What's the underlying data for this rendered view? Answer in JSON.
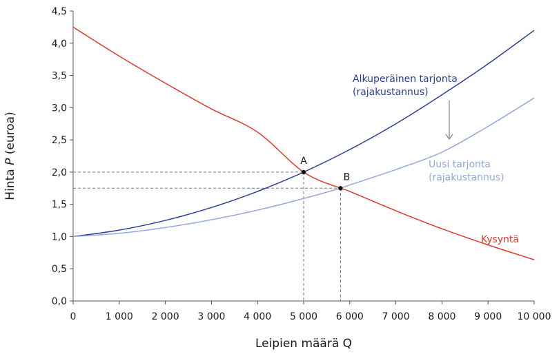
{
  "chart_data": {
    "type": "line",
    "xlabel": "Leipien määrä Q",
    "ylabel_prefix": "Hinta ",
    "ylabel_italic": "P",
    "ylabel_suffix": " (euroa)",
    "xlim": [
      0,
      10000
    ],
    "ylim": [
      0,
      4.5
    ],
    "x_ticks": [
      0,
      1000,
      2000,
      3000,
      4000,
      5000,
      6000,
      7000,
      8000,
      9000,
      10000
    ],
    "x_tick_labels": [
      "0",
      "1 000",
      "2 000",
      "3 000",
      "4 000",
      "5 000",
      "6 000",
      "7 000",
      "8 000",
      "9 000",
      "10 000"
    ],
    "y_ticks": [
      0,
      0.5,
      1.0,
      1.5,
      2.0,
      2.5,
      3.0,
      3.5,
      4.0,
      4.5
    ],
    "y_tick_labels": [
      "0,0",
      "0,5",
      "1,0",
      "1,5",
      "2,0",
      "2,5",
      "3,0",
      "3,5",
      "4,0",
      "4,5"
    ],
    "grid": false,
    "series": [
      {
        "name": "Kysyntä",
        "color": "#e0392b",
        "x": [
          0,
          1000,
          2000,
          3000,
          4000,
          5000,
          5800,
          6000,
          7000,
          8000,
          9000,
          10000
        ],
        "y": [
          4.25,
          3.8,
          3.38,
          2.98,
          2.62,
          2.0,
          1.75,
          1.7,
          1.4,
          1.12,
          0.87,
          0.64
        ]
      },
      {
        "name_lines": [
          "Alkuperäinen tarjonta",
          "(rajakustannus)"
        ],
        "color": "#2a3d9a",
        "x": [
          0,
          1000,
          2000,
          3000,
          4000,
          5000,
          6000,
          7000,
          8000,
          9000,
          10000
        ],
        "y": [
          1.0,
          1.1,
          1.25,
          1.45,
          1.7,
          2.0,
          2.35,
          2.75,
          3.2,
          3.68,
          4.2
        ]
      },
      {
        "name_lines": [
          "Uusi tarjonta",
          "(rajakustannus)"
        ],
        "color": "#93a9dc",
        "x": [
          0,
          1000,
          2000,
          3000,
          4000,
          5000,
          5800,
          6000,
          7000,
          8000,
          9000,
          10000
        ],
        "y": [
          1.0,
          1.05,
          1.14,
          1.26,
          1.41,
          1.59,
          1.75,
          1.8,
          2.04,
          2.31,
          2.71,
          3.15
        ]
      }
    ],
    "points": [
      {
        "label": "A",
        "x": 5000,
        "y": 2.0
      },
      {
        "label": "B",
        "x": 5800,
        "y": 1.75
      }
    ]
  }
}
